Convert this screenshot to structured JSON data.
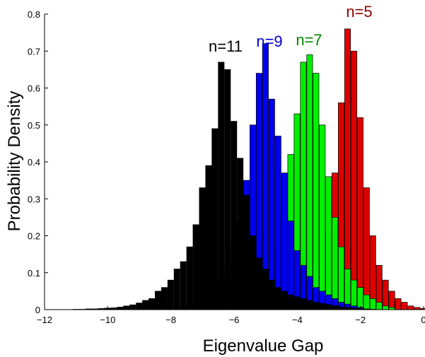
{
  "chart_data": {
    "type": "bar",
    "xlabel": "Eigenvalue Gap",
    "ylabel": "Probability Density",
    "xlim": [
      -12,
      0
    ],
    "ylim": [
      0,
      0.8
    ],
    "xticks": [
      -12,
      -10,
      -8,
      -6,
      -4,
      -2,
      0
    ],
    "xtick_labels": [
      "−12",
      "−10",
      "−8",
      "−6",
      "−4",
      "−2",
      "0"
    ],
    "yticks": [
      0,
      0.1,
      0.2,
      0.3,
      0.4,
      0.5,
      0.6,
      0.7,
      0.8
    ],
    "ytick_labels": [
      "0",
      "0.1",
      "0.2",
      "0.3",
      "0.4",
      "0.5",
      "0.6",
      "0.7",
      "0.8"
    ],
    "bin_width": 0.2,
    "grid": false,
    "series": [
      {
        "name": "n=5",
        "color": "#dd0000",
        "label_color": "#8b0000",
        "x": [
          -4.0,
          -3.8,
          -3.6,
          -3.4,
          -3.2,
          -3.0,
          -2.8,
          -2.6,
          -2.4,
          -2.2,
          -2.0,
          -1.8,
          -1.6,
          -1.4,
          -1.2,
          -1.0,
          -0.8,
          -0.6,
          -0.4,
          -0.2,
          0.0
        ],
        "values": [
          0.01,
          0.02,
          0.03,
          0.06,
          0.11,
          0.21,
          0.37,
          0.56,
          0.76,
          0.7,
          0.52,
          0.33,
          0.2,
          0.12,
          0.08,
          0.05,
          0.03,
          0.02,
          0.01,
          0.006,
          0.003
        ]
      },
      {
        "name": "n=7",
        "color": "#00ee00",
        "label_color": "#008800",
        "x": [
          -6.0,
          -5.8,
          -5.6,
          -5.4,
          -5.2,
          -5.0,
          -4.8,
          -4.6,
          -4.4,
          -4.2,
          -4.0,
          -3.8,
          -3.6,
          -3.4,
          -3.2,
          -3.0,
          -2.8,
          -2.6,
          -2.4,
          -2.2,
          -2.0,
          -1.8,
          -1.6,
          -1.4,
          -1.2,
          -1.0
        ],
        "values": [
          0.004,
          0.008,
          0.015,
          0.025,
          0.04,
          0.07,
          0.11,
          0.17,
          0.26,
          0.42,
          0.53,
          0.67,
          0.69,
          0.64,
          0.5,
          0.36,
          0.25,
          0.17,
          0.11,
          0.08,
          0.06,
          0.04,
          0.03,
          0.02,
          0.01,
          0.006
        ]
      },
      {
        "name": "n=9",
        "color": "#0000ee",
        "label_color": "#0000cc",
        "x": [
          -7.6,
          -7.4,
          -7.2,
          -7.0,
          -6.8,
          -6.6,
          -6.4,
          -6.2,
          -6.0,
          -5.8,
          -5.6,
          -5.4,
          -5.2,
          -5.0,
          -4.8,
          -4.6,
          -4.4,
          -4.2,
          -4.0,
          -3.8,
          -3.6,
          -3.4,
          -3.2,
          -3.0,
          -2.8,
          -2.6,
          -2.4,
          -2.2,
          -2.0
        ],
        "values": [
          0.004,
          0.008,
          0.012,
          0.02,
          0.03,
          0.05,
          0.08,
          0.12,
          0.17,
          0.24,
          0.35,
          0.5,
          0.64,
          0.72,
          0.57,
          0.47,
          0.37,
          0.24,
          0.16,
          0.12,
          0.09,
          0.06,
          0.05,
          0.04,
          0.03,
          0.02,
          0.015,
          0.01,
          0.006
        ]
      },
      {
        "name": "n=11",
        "color": "#000000",
        "label_color": "#000000",
        "x": [
          -11.0,
          -10.8,
          -10.6,
          -10.4,
          -10.2,
          -10.0,
          -9.8,
          -9.6,
          -9.4,
          -9.2,
          -9.0,
          -8.8,
          -8.6,
          -8.4,
          -8.2,
          -8.0,
          -7.8,
          -7.6,
          -7.4,
          -7.2,
          -7.0,
          -6.8,
          -6.6,
          -6.4,
          -6.2,
          -6.0,
          -5.8,
          -5.6,
          -5.4,
          -5.2,
          -5.0,
          -4.8,
          -4.6,
          -4.4,
          -4.2,
          -4.0,
          -3.8,
          -3.6,
          -3.4,
          -3.2,
          -3.0,
          -2.8,
          -2.6,
          -2.4,
          -2.2,
          -2.0,
          -1.8,
          -1.6
        ],
        "values": [
          0.001,
          0.001,
          0.002,
          0.002,
          0.003,
          0.004,
          0.005,
          0.007,
          0.01,
          0.013,
          0.018,
          0.025,
          0.03,
          0.05,
          0.06,
          0.08,
          0.11,
          0.13,
          0.17,
          0.23,
          0.33,
          0.39,
          0.49,
          0.67,
          0.65,
          0.51,
          0.41,
          0.31,
          0.2,
          0.14,
          0.11,
          0.08,
          0.06,
          0.05,
          0.04,
          0.035,
          0.03,
          0.025,
          0.02,
          0.017,
          0.014,
          0.011,
          0.008,
          0.006,
          0.004,
          0.003,
          0.002,
          0.001
        ]
      }
    ]
  }
}
